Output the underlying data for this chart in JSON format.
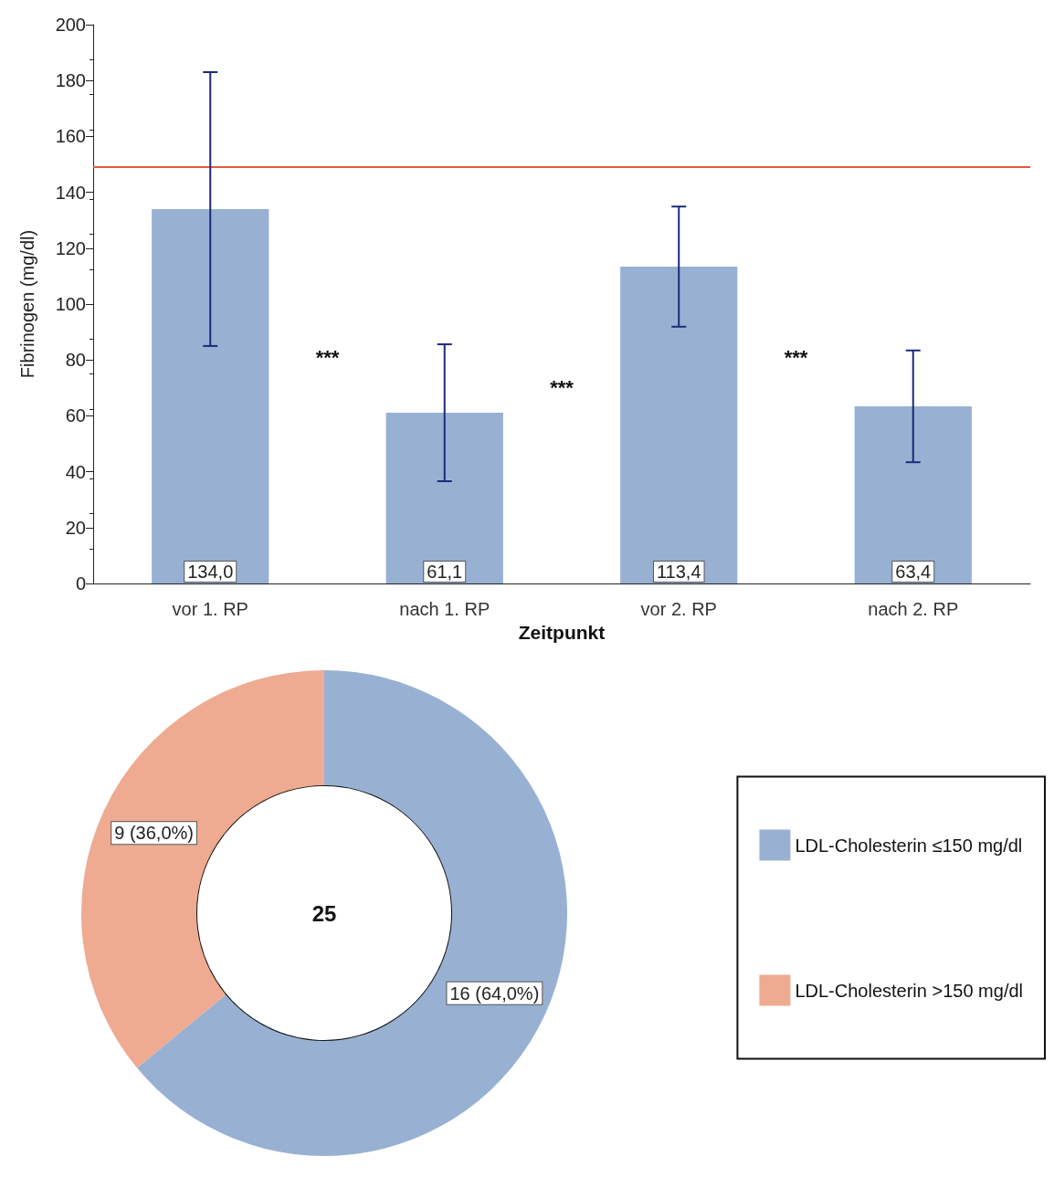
{
  "chart_data": [
    {
      "type": "bar",
      "xlabel": "Zeitpunkt",
      "ylabel": "Fibrinogen (mg/dl)",
      "categories": [
        "vor 1. RP",
        "nach 1. RP",
        "vor 2. RP",
        "nach 2. RP"
      ],
      "values": [
        134.0,
        61.1,
        113.4,
        63.4
      ],
      "value_labels": [
        "134,0",
        "61,1",
        "113,4",
        "63,4"
      ],
      "errors": [
        49,
        24.5,
        21.5,
        20
      ],
      "color": "#98b1d3",
      "ylim": [
        0,
        200
      ],
      "yticks": [
        0,
        20,
        40,
        60,
        80,
        100,
        120,
        140,
        160,
        180,
        200
      ],
      "ref_lines": [
        {
          "axis": "y",
          "value": 149,
          "color": "#e8573f"
        }
      ],
      "annotations": [
        "***",
        "***",
        "***"
      ],
      "grid": false,
      "legend": false
    },
    {
      "type": "donut",
      "categories": [
        "LDL-Cholesterin ≤150 mg/dl",
        "LDL-Cholesterin >150 mg/dl"
      ],
      "values": [
        16,
        9
      ],
      "colors": [
        "#98b1d3",
        "#eeab91"
      ],
      "value_labels": [
        "16 (64,0%)",
        "9 (36,0%)"
      ],
      "annotations": [
        "25"
      ],
      "legend": "right"
    }
  ]
}
